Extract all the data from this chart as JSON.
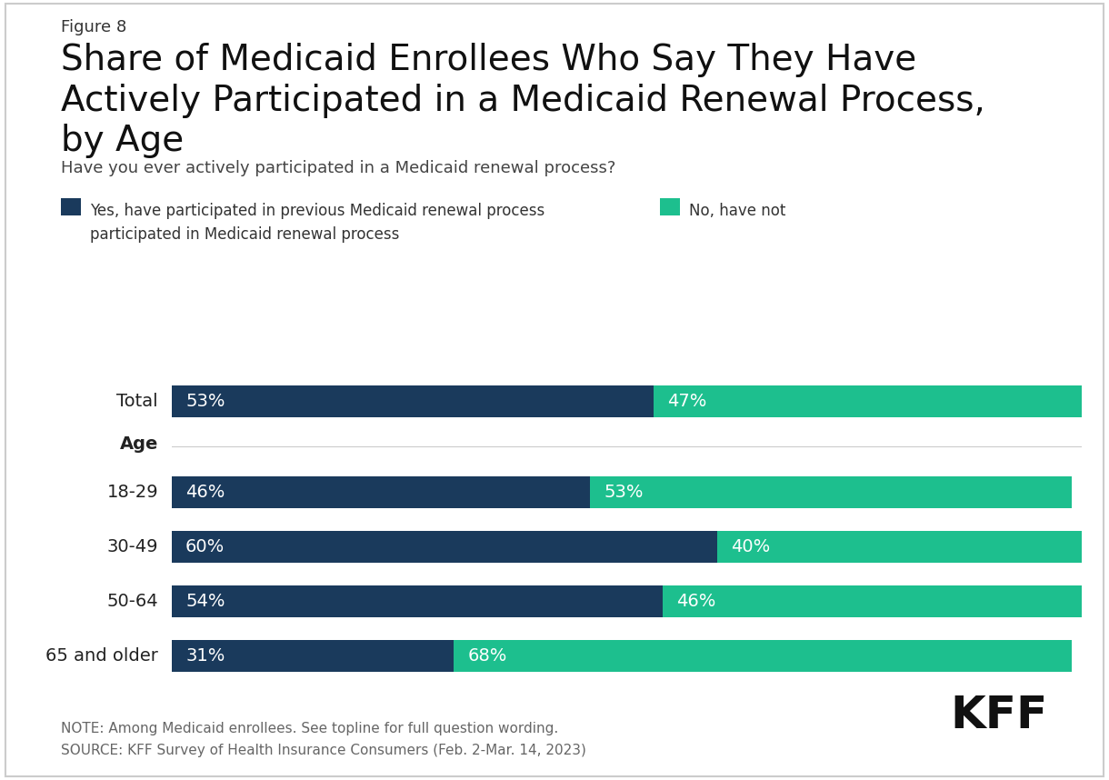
{
  "figure_label": "Figure 8",
  "title_line1": "Share of Medicaid Enrollees Who Say They Have",
  "title_line2": "Actively Participated in a Medicaid Renewal Process,",
  "title_line3": "by Age",
  "subtitle": "Have you ever actively participated in a Medicaid renewal process?",
  "categories": [
    "Total",
    "18-29",
    "30-49",
    "50-64",
    "65 and older"
  ],
  "age_header": "Age",
  "yes_values": [
    53,
    46,
    60,
    54,
    31
  ],
  "no_values": [
    47,
    53,
    40,
    46,
    68
  ],
  "color_yes": "#1a3a5c",
  "color_no": "#1dbf8e",
  "bar_height": 0.52,
  "legend_yes": "Yes, have participated in previous Medicaid renewal process",
  "legend_no_line1": "No, have not",
  "legend_no_line2": "participated in Medicaid renewal process",
  "note_line1": "NOTE: Among Medicaid enrollees. See topline for full question wording.",
  "note_line2": "SOURCE: KFF Survey of Health Insurance Consumers (Feb. 2-Mar. 14, 2023)",
  "background_color": "#ffffff",
  "bar_label_color": "#ffffff",
  "bar_label_fontsize": 14,
  "cat_label_fontsize": 14,
  "title_fontsize": 28,
  "subtitle_fontsize": 13,
  "figure_label_fontsize": 13
}
